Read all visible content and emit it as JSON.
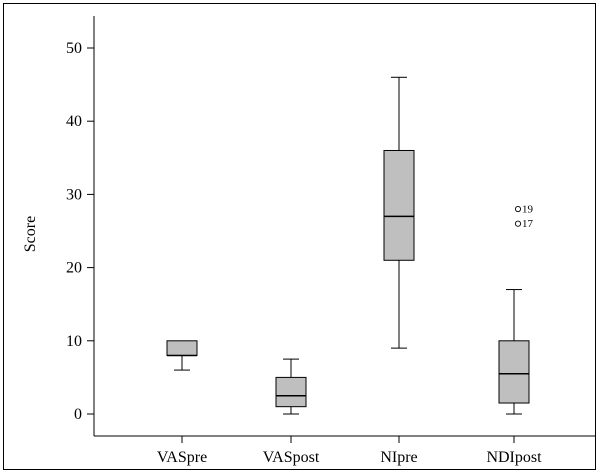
{
  "chart_data": {
    "type": "boxplot",
    "title": "",
    "xlabel": "",
    "ylabel": "Score",
    "ylim": [
      0,
      52
    ],
    "yticks": [
      0,
      10,
      20,
      30,
      40,
      50
    ],
    "grid": false,
    "box_color": "#bfbfbf",
    "categories": [
      "VASpre",
      "VASpost",
      "NIpre",
      "NDIpost"
    ],
    "boxes": [
      {
        "label": "VASpre",
        "whisker_low": 6,
        "q1": 8,
        "median": 8,
        "q3": 10,
        "whisker_high": 10,
        "outliers": []
      },
      {
        "label": "VASpost",
        "whisker_low": 0,
        "q1": 1,
        "median": 2.5,
        "q3": 5,
        "whisker_high": 7.5,
        "outliers": []
      },
      {
        "label": "NIpre",
        "whisker_low": 9,
        "q1": 21,
        "median": 27,
        "q3": 36,
        "whisker_high": 46,
        "outliers": []
      },
      {
        "label": "NDIpost",
        "whisker_low": 0,
        "q1": 1.5,
        "median": 5.5,
        "q3": 10,
        "whisker_high": 17,
        "outliers": [
          {
            "value": 28,
            "label": "19"
          },
          {
            "value": 26,
            "label": "17"
          }
        ]
      }
    ]
  }
}
